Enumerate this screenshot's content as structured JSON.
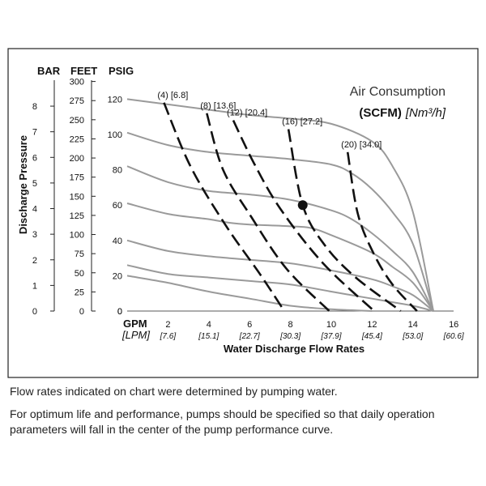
{
  "chart_data": {
    "type": "line",
    "xlabel": "Water Discharge Flow Rates",
    "x_unit_primary": "GPM",
    "x_unit_secondary": "[LPM]",
    "xlim": [
      0,
      16
    ],
    "x_ticks": [
      {
        "v": 0,
        "gpm": "0",
        "lpm": ""
      },
      {
        "v": 2,
        "gpm": "2",
        "lpm": "[7.6]"
      },
      {
        "v": 4,
        "gpm": "4",
        "lpm": "[15.1]"
      },
      {
        "v": 6,
        "gpm": "6",
        "lpm": "[22.7]"
      },
      {
        "v": 8,
        "gpm": "8",
        "lpm": "[30.3]"
      },
      {
        "v": 10,
        "gpm": "10",
        "lpm": "[37.9]"
      },
      {
        "v": 12,
        "gpm": "12",
        "lpm": "[45.4]"
      },
      {
        "v": 14,
        "gpm": "14",
        "lpm": "[53.0]"
      },
      {
        "v": 16,
        "gpm": "16",
        "lpm": "[60.6]"
      }
    ],
    "ylabel": "Discharge Pressure",
    "ylim_psig": [
      0,
      130
    ],
    "y_units": {
      "bar": "BAR",
      "feet": "FEET",
      "psig": "PSIG"
    },
    "y_ticks_psig": [
      "0",
      "20",
      "40",
      "60",
      "80",
      "100",
      "120"
    ],
    "y_ticks_feet": [
      "0",
      "25",
      "50",
      "75",
      "100",
      "125",
      "150",
      "175",
      "200",
      "225",
      "250",
      "275",
      "300"
    ],
    "y_ticks_bar": [
      "0",
      "1",
      "2",
      "3",
      "4",
      "5",
      "6",
      "7",
      "8"
    ],
    "legend": {
      "title": "Air Consumption",
      "unit_bold": "(SCFM)",
      "unit_italic": "[Nm³/h]"
    },
    "grid": false,
    "performance_curves_psig": [
      {
        "x": [
          0,
          2,
          4,
          6,
          8,
          10,
          12,
          13,
          14,
          15
        ],
        "y": [
          120,
          117,
          114,
          111,
          109,
          106,
          96,
          82,
          56,
          0
        ]
      },
      {
        "x": [
          0,
          2,
          4,
          6,
          8,
          10,
          11,
          12,
          13,
          14,
          15
        ],
        "y": [
          101,
          94,
          90,
          88,
          86,
          83,
          78,
          69,
          56,
          38,
          0
        ]
      },
      {
        "x": [
          0,
          2,
          4,
          6,
          8,
          10,
          11,
          12,
          13,
          14,
          15
        ],
        "y": [
          82,
          73,
          68,
          66,
          63,
          57,
          52,
          44,
          34,
          22,
          0
        ]
      },
      {
        "x": [
          0,
          2,
          4,
          5,
          6,
          8,
          9,
          10,
          12,
          13,
          14,
          15
        ],
        "y": [
          61,
          55,
          52,
          50,
          49,
          48,
          47,
          43,
          33,
          25,
          16,
          0
        ]
      },
      {
        "x": [
          0,
          2,
          4,
          6,
          8,
          10,
          12,
          13,
          14,
          15
        ],
        "y": [
          40,
          34,
          31,
          29,
          27,
          23,
          18,
          14,
          9,
          0
        ]
      },
      {
        "x": [
          0,
          2,
          4,
          6,
          8,
          10,
          11,
          12,
          13,
          14,
          15
        ],
        "y": [
          26,
          21,
          19,
          17,
          15,
          11,
          9,
          7,
          5,
          3,
          0
        ]
      },
      {
        "x": [
          0,
          2,
          4,
          6,
          8,
          10,
          11,
          12
        ],
        "y": [
          20,
          16,
          11,
          7,
          3,
          1,
          0.5,
          0
        ]
      }
    ],
    "series": [
      {
        "name": "(4) [6.8]",
        "x": [
          1.8,
          3.1,
          4.8,
          6.5,
          7.7
        ],
        "y": [
          118,
          82,
          49,
          21,
          0
        ]
      },
      {
        "name": "(8) [13.6]",
        "x": [
          3.9,
          4.7,
          6.1,
          7.8,
          9.9
        ],
        "y": [
          112,
          80,
          53,
          24,
          0
        ]
      },
      {
        "name": "(12) [20.4]",
        "x": [
          5.2,
          6.2,
          7.5,
          9.6,
          12.1
        ],
        "y": [
          108,
          84,
          58,
          27,
          0
        ]
      },
      {
        "name": "(16) [27.2]",
        "x": [
          7.9,
          8.6,
          9.7,
          11.2,
          13.4
        ],
        "y": [
          103,
          60,
          37,
          19,
          0
        ]
      },
      {
        "name": "(20) [34.0]",
        "x": [
          10.8,
          11.3,
          12.1,
          13.0,
          14.2
        ],
        "y": [
          90,
          55,
          32,
          15,
          0
        ]
      }
    ],
    "marked_point": {
      "x": 8.6,
      "y": 60
    }
  },
  "notes": [
    "Flow rates indicated on chart were determined by pumping water.",
    "For optimum life and performance, pumps should be specified so that daily operation parameters will fall in the center of the pump performance curve."
  ]
}
